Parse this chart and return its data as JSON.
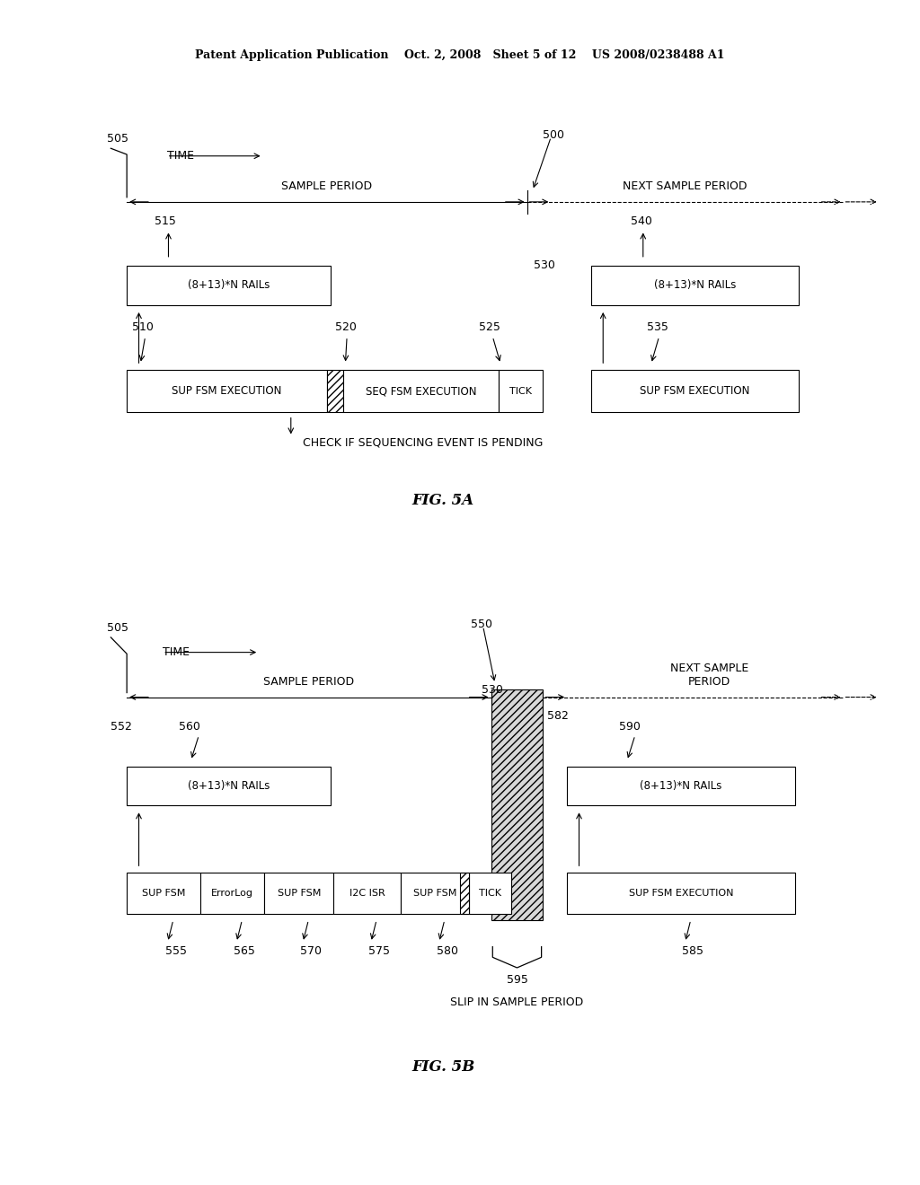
{
  "bg_color": "#ffffff",
  "header": "Patent Application Publication    Oct. 2, 2008   Sheet 5 of 12    US 2008/0238488 A1",
  "fig5a": {
    "title": "FIG. 5A",
    "label_505": "505",
    "label_500": "500",
    "label_515": "515",
    "label_530": "530",
    "label_540": "540",
    "label_510": "510",
    "label_520": "520",
    "label_525": "525",
    "label_535": "535",
    "time_label": "TIME",
    "sample_period": "SAMPLE PERIOD",
    "next_sample_period": "NEXT SAMPLE PERIOD",
    "rails1": "(8+13)*N RAILs",
    "rails2": "(8+13)*N RAILs",
    "box_sup1": "SUP FSM EXECUTION",
    "box_seq": "SEQ FSM EXECUTION",
    "box_tick": "TICK",
    "box_sup2": "SUP FSM EXECUTION",
    "check_label": "CHECK IF SEQUENCING EVENT IS PENDING"
  },
  "fig5b": {
    "title": "FIG. 5B",
    "label_505": "505",
    "label_550": "550",
    "label_530": "530",
    "label_582": "582",
    "label_552": "552",
    "label_560": "560",
    "label_590": "590",
    "label_555": "555",
    "label_565": "565",
    "label_570": "570",
    "label_575": "575",
    "label_580": "580",
    "label_585": "585",
    "label_595": "595",
    "time_label": "TIME",
    "sample_period": "SAMPLE PERIOD",
    "next_sample_period": "NEXT SAMPLE\nPERIOD",
    "rails1": "(8+13)*N RAILs",
    "rails2": "(8+13)*N RAILs",
    "box_sup1": "SUP FSM",
    "box_err": "ErrorLog",
    "box_sup2": "SUP FSM",
    "box_i2c": "I2C ISR",
    "box_sup3": "SUP FSM",
    "box_tick": "TICK",
    "box_sup4": "SUP FSM EXECUTION",
    "slip_label": "SLIP IN SAMPLE PERIOD"
  }
}
